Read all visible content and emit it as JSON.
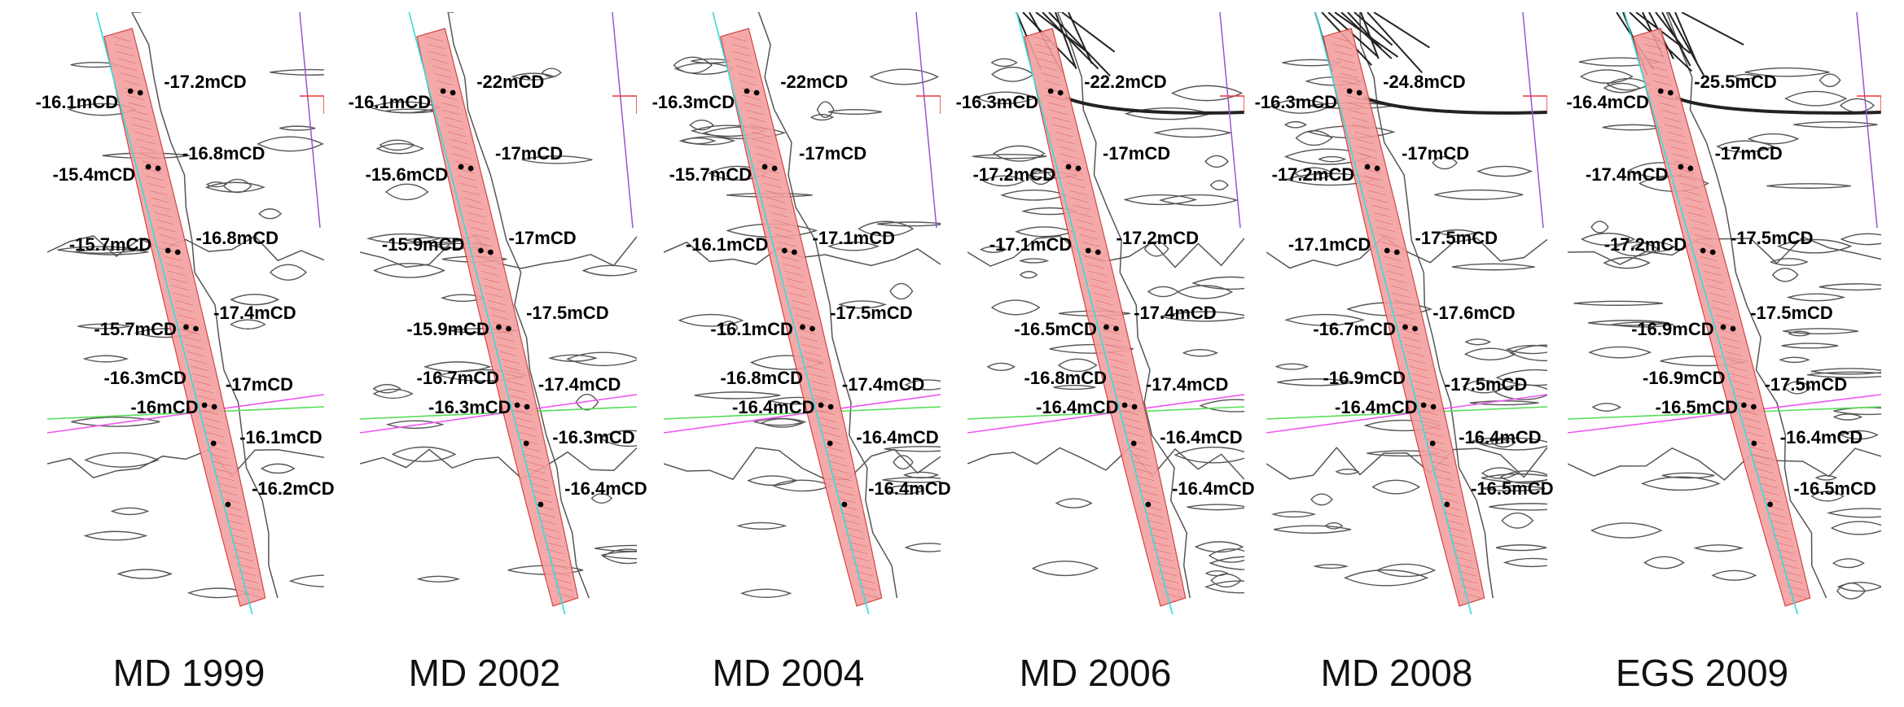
{
  "panels": [
    {
      "caption": "MD 1999",
      "labels": [
        "-17.2mCD",
        "-16.1mCD",
        "-16.8mCD",
        "-15.4mCD",
        "-16.8mCD",
        "-15.7mCD",
        "-17.4mCD",
        "-15.7mCD",
        "-16.3mCD",
        "-17mCD",
        "-16mCD",
        "-16.1mCD",
        "-16.2mCD"
      ]
    },
    {
      "caption": "MD 2002",
      "labels": [
        "-22mCD",
        "-16.1mCD",
        "-17mCD",
        "-15.6mCD",
        "-17mCD",
        "-15.9mCD",
        "-17.5mCD",
        "-15.9mCD",
        "-16.7mCD",
        "-17.4mCD",
        "-16.3mCD",
        "-16.3mCD",
        "-16.4mCD"
      ]
    },
    {
      "caption": "MD 2004",
      "labels": [
        "-22mCD",
        "-16.3mCD",
        "-17mCD",
        "-15.7mCD",
        "-17.1mCD",
        "-16.1mCD",
        "-17.5mCD",
        "-16.1mCD",
        "-16.8mCD",
        "-17.4mCD",
        "-16.4mCD",
        "-16.4mCD",
        "-16.4mCD"
      ]
    },
    {
      "caption": "MD 2006",
      "labels": [
        "-22.2mCD",
        "-16.3mCD",
        "-17mCD",
        "-17.2mCD",
        "-17.2mCD",
        "-17.1mCD",
        "-17.4mCD",
        "-16.5mCD",
        "-16.8mCD",
        "-17.4mCD",
        "-16.4mCD",
        "-16.4mCD",
        "-16.4mCD"
      ]
    },
    {
      "caption": "MD 2008",
      "labels": [
        "-24.8mCD",
        "-16.3mCD",
        "-17mCD",
        "-17.2mCD",
        "-17.5mCD",
        "-17.1mCD",
        "-17.6mCD",
        "-16.7mCD",
        "-16.9mCD",
        "-17.5mCD",
        "-16.4mCD",
        "-16.4mCD",
        "-16.5mCD"
      ]
    },
    {
      "caption": "EGS 2009",
      "labels": [
        "-25.5mCD",
        "-16.4mCD",
        "-17mCD",
        "-17.4mCD",
        "-17.5mCD",
        "-17.2mCD",
        "-17.5mCD",
        "-16.9mCD",
        "-16.9mCD",
        "-17.5mCD",
        "-16.5mCD",
        "-16.4mCD",
        "-16.5mCD"
      ]
    }
  ],
  "colors": {
    "channel_fill": "#f3a0a0",
    "channel_edge": "#d03030",
    "contour": "#555555",
    "cyan_line": "#33dddd",
    "green_line": "#55dd55",
    "magenta_line": "#ee55ee",
    "purple_line": "#9955cc",
    "red_marker": "#ee3333",
    "dot": "#000000",
    "label": "#000000"
  }
}
